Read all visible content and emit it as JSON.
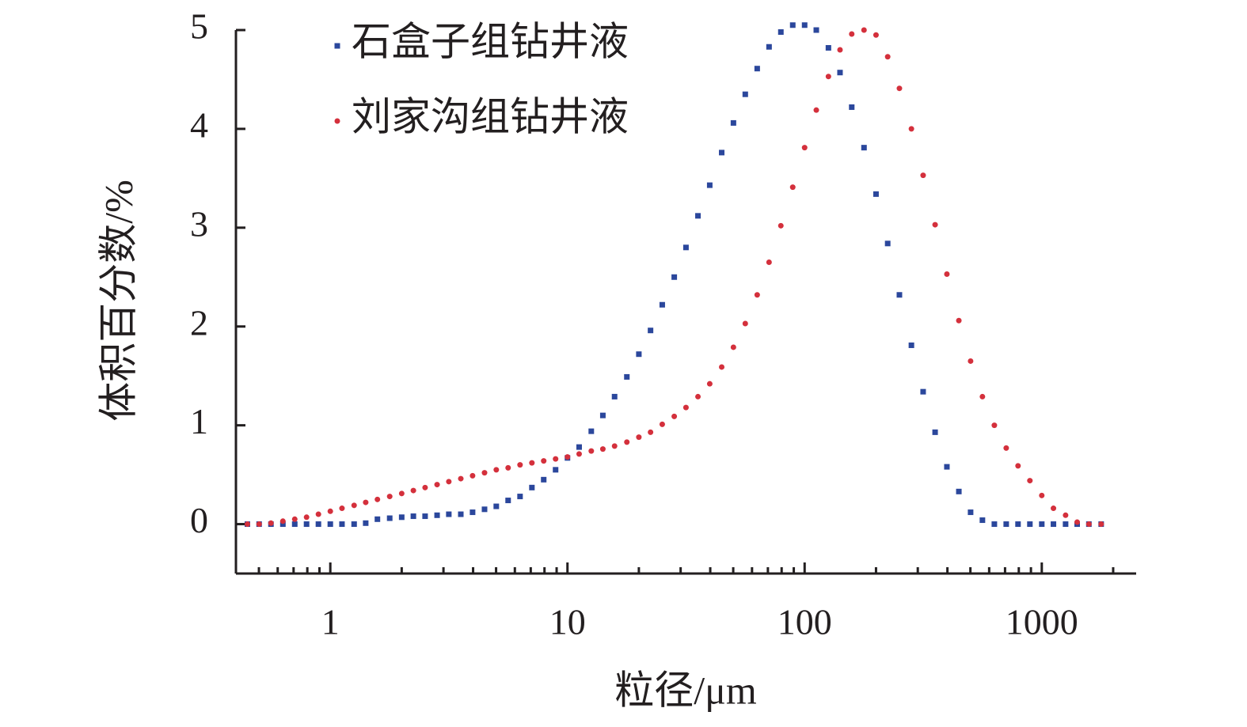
{
  "chart_data": {
    "type": "scatter",
    "xlabel": "粒径/μm",
    "ylabel": "体积百分数/%",
    "x": [
      0.447,
      0.501,
      0.562,
      0.631,
      0.708,
      0.794,
      0.891,
      1,
      1.12,
      1.26,
      1.41,
      1.58,
      1.78,
      2.0,
      2.24,
      2.51,
      2.82,
      3.16,
      3.55,
      3.98,
      4.47,
      5.01,
      5.62,
      6.31,
      7.08,
      7.94,
      8.91,
      10,
      11.2,
      12.6,
      14.1,
      15.8,
      17.8,
      20.0,
      22.4,
      25.1,
      28.2,
      31.6,
      35.5,
      39.8,
      44.7,
      50.1,
      56.2,
      63.1,
      70.8,
      79.4,
      89.1,
      100,
      112,
      126,
      141,
      158,
      178,
      200,
      224,
      251,
      282,
      316,
      355,
      398,
      447,
      501,
      562,
      631,
      708,
      794,
      891,
      1000,
      1120,
      1260,
      1410,
      1580,
      1780
    ],
    "series": [
      {
        "name": "石盒子组钻井液",
        "color": "#2b479c",
        "marker": "square",
        "values": [
          0,
          0,
          0,
          0,
          0,
          0,
          0,
          0,
          0,
          0,
          0.01,
          0.05,
          0.06,
          0.07,
          0.08,
          0.08,
          0.09,
          0.1,
          0.1,
          0.12,
          0.15,
          0.18,
          0.24,
          0.28,
          0.37,
          0.45,
          0.55,
          0.67,
          0.78,
          0.94,
          1.1,
          1.29,
          1.49,
          1.72,
          1.96,
          2.22,
          2.5,
          2.8,
          3.12,
          3.43,
          3.76,
          4.06,
          4.35,
          4.61,
          4.83,
          4.98,
          5.05,
          5.05,
          5.0,
          4.82,
          4.57,
          4.22,
          3.81,
          3.34,
          2.84,
          2.32,
          1.81,
          1.34,
          0.93,
          0.58,
          0.33,
          0.12,
          0.04,
          0,
          0,
          0,
          0,
          0,
          0,
          0,
          0,
          0,
          0
        ]
      },
      {
        "name": "刘家沟组钻井液",
        "color": "#d4303c",
        "marker": "circle",
        "values": [
          0,
          0,
          0.01,
          0.03,
          0.05,
          0.07,
          0.1,
          0.13,
          0.16,
          0.19,
          0.22,
          0.25,
          0.28,
          0.31,
          0.34,
          0.37,
          0.4,
          0.43,
          0.46,
          0.49,
          0.52,
          0.55,
          0.57,
          0.6,
          0.62,
          0.64,
          0.66,
          0.68,
          0.71,
          0.74,
          0.76,
          0.79,
          0.83,
          0.88,
          0.93,
          1.01,
          1.09,
          1.18,
          1.29,
          1.42,
          1.59,
          1.79,
          2.03,
          2.32,
          2.65,
          3.02,
          3.41,
          3.81,
          4.19,
          4.53,
          4.8,
          4.96,
          5.0,
          4.95,
          4.73,
          4.41,
          4.0,
          3.53,
          3.03,
          2.53,
          2.06,
          1.65,
          1.29,
          1.0,
          0.77,
          0.59,
          0.44,
          0.29,
          0.16,
          0.09,
          0.02,
          0,
          0
        ]
      }
    ],
    "xscale": "log",
    "xlim": [
      0.4,
      2500
    ],
    "xticks": [
      1,
      10,
      100,
      1000
    ],
    "ylim": [
      -0.5,
      5
    ],
    "yticks": [
      0,
      1,
      2,
      3,
      4,
      5
    ],
    "grid": false,
    "legend": "upper left"
  }
}
